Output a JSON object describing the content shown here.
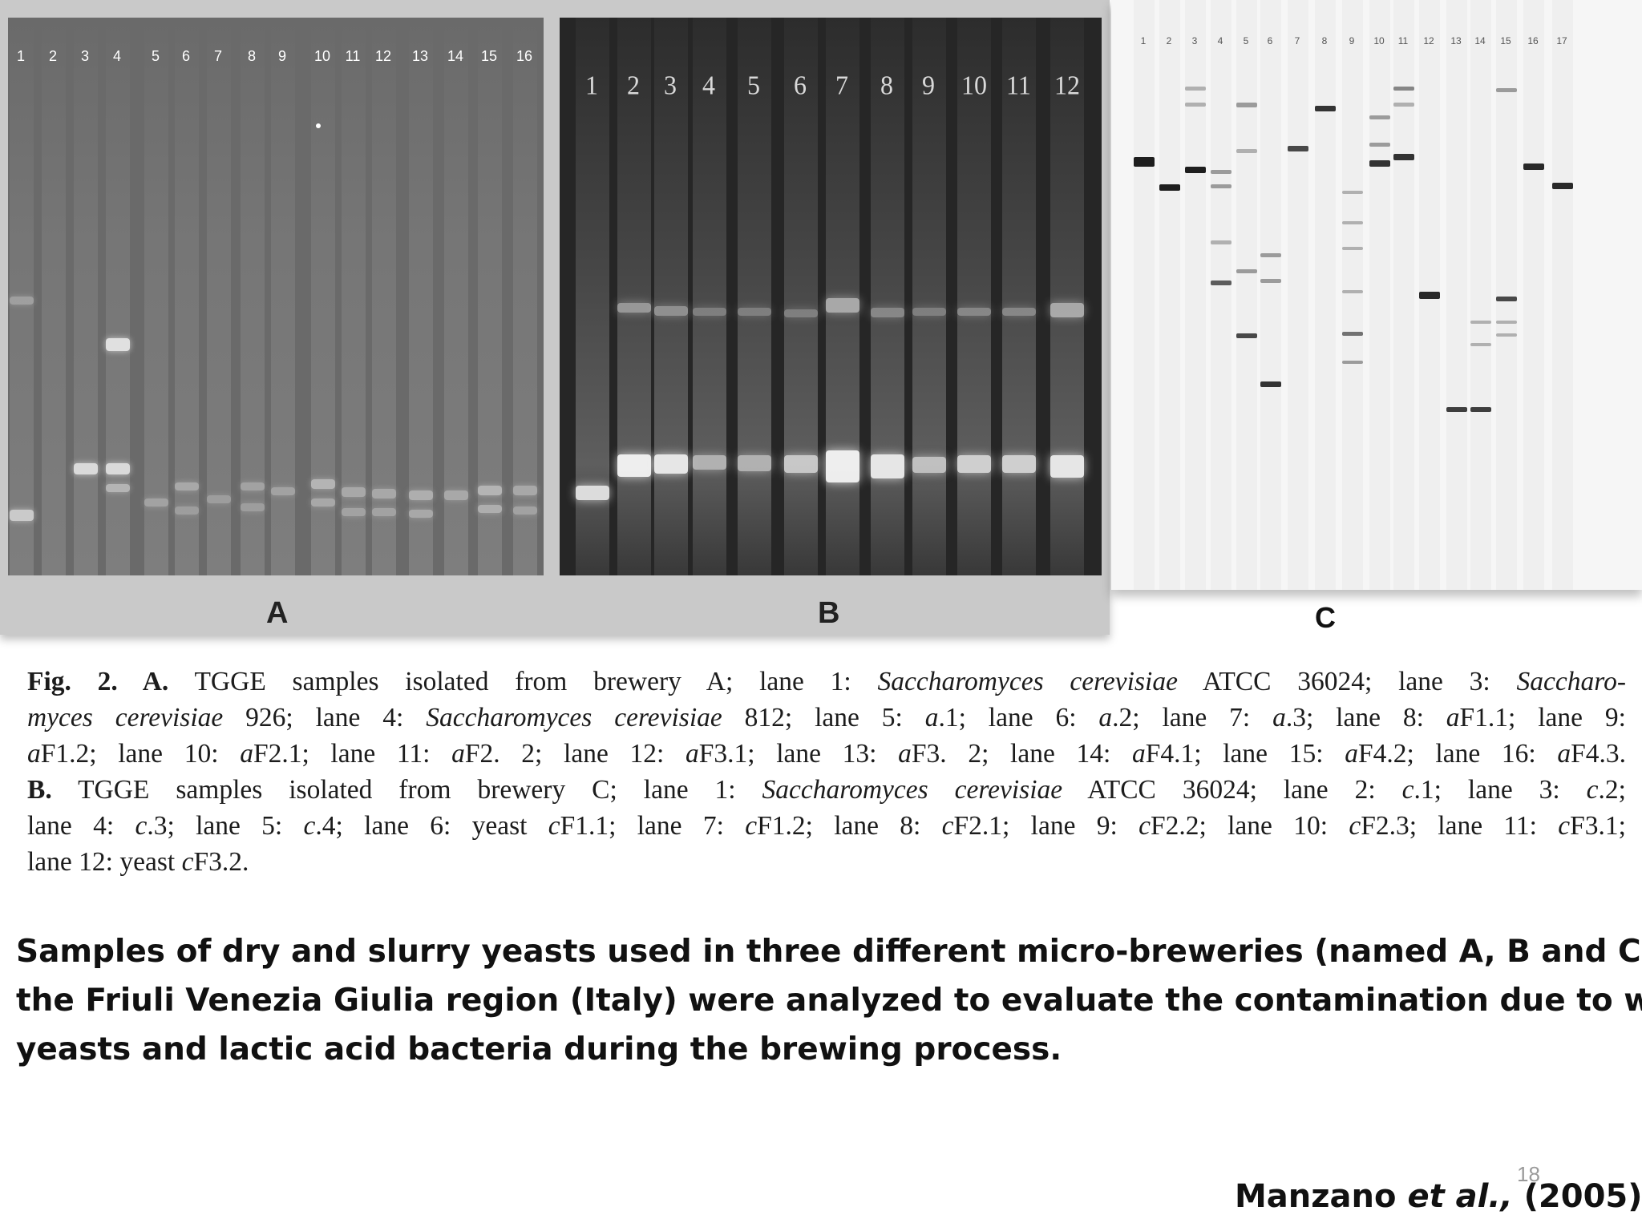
{
  "panels": {
    "a": {
      "label": "A",
      "lanes": [
        "1",
        "2",
        "3",
        "4",
        "5",
        "6",
        "7",
        "8",
        "9",
        "10",
        "11",
        "12",
        "13",
        "14",
        "15",
        "16"
      ]
    },
    "b": {
      "label": "B",
      "lanes": [
        "1",
        "2",
        "3",
        "4",
        "5",
        "6",
        "7",
        "8",
        "9",
        "10",
        "11",
        "12"
      ]
    },
    "c": {
      "label": "C",
      "lanes": [
        "1",
        "2",
        "3",
        "4",
        "5",
        "6",
        "7",
        "8",
        "9",
        "10",
        "11",
        "12",
        "13",
        "14",
        "15",
        "16",
        "17"
      ]
    }
  },
  "caption": {
    "lines": [
      [
        {
          "t": "Fig. 2. A.",
          "b": true
        },
        {
          "t": " TGGE samples isolated from brewery A; lane 1: "
        },
        {
          "t": "Saccharomyces cerevisiae",
          "i": true
        },
        {
          "t": " ATCC 36024; lane 3: "
        },
        {
          "t": "Saccharo-",
          "i": true
        }
      ],
      [
        {
          "t": "myces cerevisiae",
          "i": true
        },
        {
          "t": " 926; lane 4: "
        },
        {
          "t": "Saccharomyces cerevisiae",
          "i": true
        },
        {
          "t": " 812; lane 5: "
        },
        {
          "t": "a",
          "i": true
        },
        {
          "t": ".1; lane 6: "
        },
        {
          "t": "a",
          "i": true
        },
        {
          "t": ".2; lane 7: "
        },
        {
          "t": "a",
          "i": true
        },
        {
          "t": ".3; lane 8: "
        },
        {
          "t": "a",
          "i": true
        },
        {
          "t": "F1.1; lane 9:"
        }
      ],
      [
        {
          "t": "a",
          "i": true
        },
        {
          "t": "F1.2; lane 10: "
        },
        {
          "t": "a",
          "i": true
        },
        {
          "t": "F2.1; lane 11: "
        },
        {
          "t": "a",
          "i": true
        },
        {
          "t": "F2. 2; lane 12: "
        },
        {
          "t": "a",
          "i": true
        },
        {
          "t": "F3.1; lane 13: "
        },
        {
          "t": "a",
          "i": true
        },
        {
          "t": "F3. 2; lane 14: "
        },
        {
          "t": "a",
          "i": true
        },
        {
          "t": "F4.1; lane 15: "
        },
        {
          "t": "a",
          "i": true
        },
        {
          "t": "F4.2; lane 16: "
        },
        {
          "t": "a",
          "i": true
        },
        {
          "t": "F4.3."
        }
      ],
      [
        {
          "t": "B.",
          "b": true
        },
        {
          "t": " TGGE samples isolated from brewery C; lane 1: "
        },
        {
          "t": "Saccharomyces cerevisiae",
          "i": true
        },
        {
          "t": " ATCC 36024; lane 2: "
        },
        {
          "t": "c",
          "i": true
        },
        {
          "t": ".1; lane 3: "
        },
        {
          "t": "c",
          "i": true
        },
        {
          "t": ".2;"
        }
      ],
      [
        {
          "t": "lane 4: "
        },
        {
          "t": "c",
          "i": true
        },
        {
          "t": ".3; lane 5: "
        },
        {
          "t": "c",
          "i": true
        },
        {
          "t": ".4; lane 6: yeast "
        },
        {
          "t": "c",
          "i": true
        },
        {
          "t": "F1.1; lane 7: "
        },
        {
          "t": "c",
          "i": true
        },
        {
          "t": "F1.2; lane 8: "
        },
        {
          "t": "c",
          "i": true
        },
        {
          "t": "F2.1; lane 9: "
        },
        {
          "t": "c",
          "i": true
        },
        {
          "t": "F2.2; lane 10: "
        },
        {
          "t": "c",
          "i": true
        },
        {
          "t": "F2.3; lane 11: "
        },
        {
          "t": "c",
          "i": true
        },
        {
          "t": "F3.1;"
        }
      ],
      [
        {
          "t": "lane 12: yeast "
        },
        {
          "t": "c",
          "i": true
        },
        {
          "t": "F3.2."
        }
      ]
    ]
  },
  "summary": {
    "lines": [
      "Samples of dry and slurry yeasts used in three different micro-breweries (named A, B and C) in",
      "the Friuli Venezia Giulia region (Italy) were analyzed to evaluate the contamination due to wild",
      "yeasts and lactic acid bacteria during the brewing process."
    ]
  },
  "page_number": "18",
  "citation": {
    "author": "Manzano ",
    "etal": "et al.,",
    "year": " (2005)"
  }
}
